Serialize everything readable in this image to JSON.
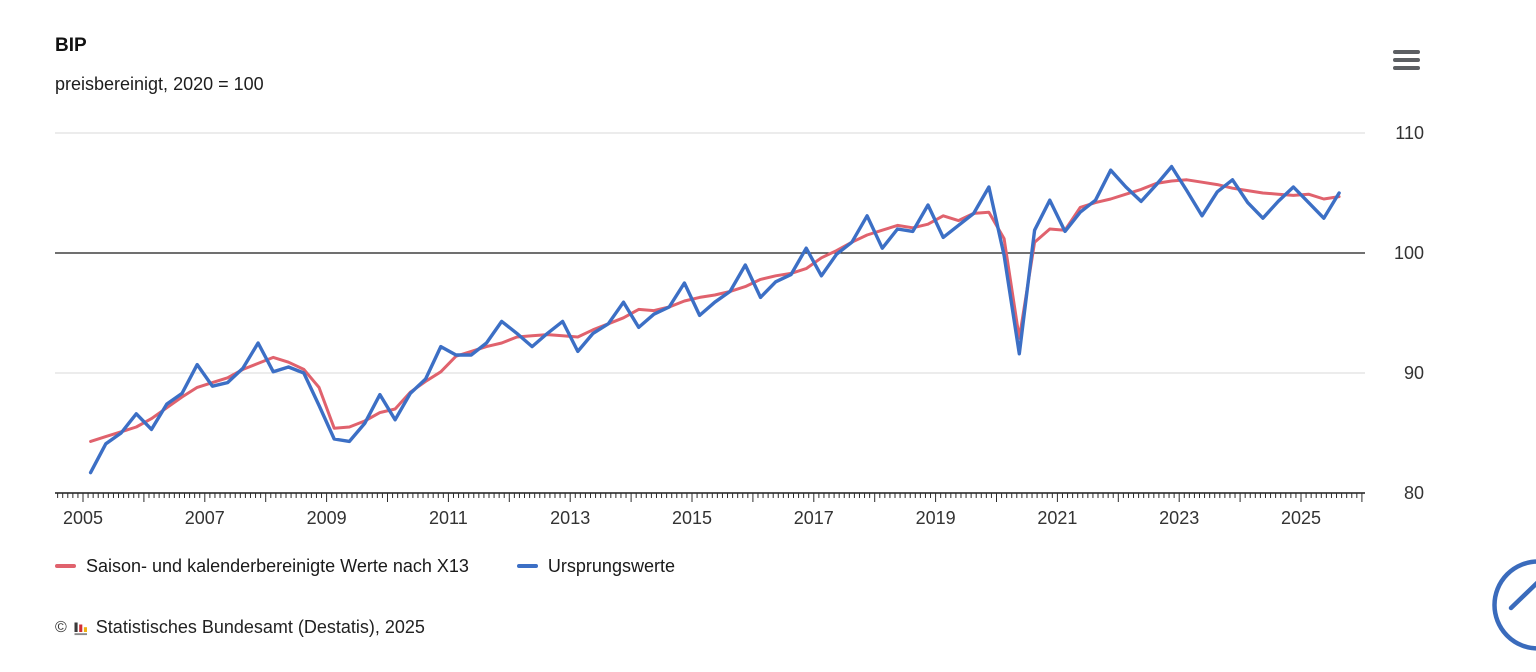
{
  "header": {
    "title": "BIP",
    "subtitle": "preisbereinigt, 2020 = 100"
  },
  "menu": {
    "aria_label": "Menü"
  },
  "chart_data": {
    "type": "line",
    "title": "BIP",
    "subtitle": "preisbereinigt, 2020 = 100",
    "frequency": "quarterly",
    "x_axis": {
      "start_year": 2005,
      "start_quarter": 1,
      "end_year": 2025,
      "end_quarter": 3,
      "tick_label_years": [
        2005,
        2007,
        2009,
        2011,
        2013,
        2015,
        2017,
        2019,
        2021,
        2023,
        2025
      ],
      "minor_ticks": "monthly",
      "range": [
        2004.54,
        2026.05
      ]
    },
    "y_axis": {
      "ticks": [
        80,
        90,
        100,
        110
      ],
      "range": [
        80,
        111.1
      ],
      "reference_line": 100,
      "labels_side": "right"
    },
    "series": [
      {
        "name": "Saison- und kalenderbereinigte Werte nach X13",
        "color": "#e0626d",
        "values": [
          84.3,
          84.7,
          85.1,
          85.5,
          86.2,
          87.1,
          88.0,
          88.8,
          89.2,
          89.6,
          90.3,
          90.8,
          91.3,
          90.9,
          90.3,
          88.8,
          85.4,
          85.5,
          86.0,
          86.7,
          87.0,
          88.4,
          89.3,
          90.1,
          91.4,
          91.8,
          92.2,
          92.5,
          93.0,
          93.1,
          93.2,
          93.1,
          93.0,
          93.6,
          94.1,
          94.6,
          95.3,
          95.2,
          95.5,
          96.0,
          96.3,
          96.5,
          96.8,
          97.2,
          97.8,
          98.1,
          98.3,
          98.7,
          99.6,
          100.2,
          100.9,
          101.5,
          101.9,
          102.3,
          102.1,
          102.4,
          103.1,
          102.7,
          103.3,
          103.4,
          101.2,
          92.9,
          100.9,
          102.0,
          101.9,
          103.8,
          104.2,
          104.5,
          104.9,
          105.3,
          105.8,
          106.0,
          106.1,
          105.9,
          105.7,
          105.4,
          105.2,
          105.0,
          104.9,
          104.8,
          104.9,
          104.5,
          104.7
        ]
      },
      {
        "name": "Ursprungswerte",
        "color": "#3c6fc5",
        "values": [
          81.7,
          84.1,
          85.0,
          86.6,
          85.3,
          87.4,
          88.3,
          90.7,
          88.9,
          89.2,
          90.4,
          92.5,
          90.1,
          90.5,
          90.0,
          87.3,
          84.5,
          84.3,
          85.8,
          88.2,
          86.1,
          88.3,
          89.5,
          92.2,
          91.5,
          91.5,
          92.5,
          94.3,
          93.3,
          92.2,
          93.3,
          94.3,
          91.8,
          93.3,
          94.1,
          95.9,
          93.8,
          94.9,
          95.5,
          97.5,
          94.8,
          95.9,
          96.8,
          99.0,
          96.3,
          97.6,
          98.2,
          100.4,
          98.1,
          99.9,
          100.9,
          103.1,
          100.4,
          102.0,
          101.8,
          104.0,
          101.3,
          102.3,
          103.3,
          105.5,
          99.8,
          91.6,
          101.9,
          104.4,
          101.8,
          103.4,
          104.4,
          106.9,
          105.5,
          104.3,
          105.7,
          107.2,
          105.2,
          103.1,
          105.1,
          106.1,
          104.2,
          102.9,
          104.3,
          105.5,
          104.2,
          102.9,
          105.0
        ]
      }
    ],
    "grid": "horizontal-only",
    "legend_position": "bottom-left"
  },
  "legend": {
    "items": [
      {
        "label": "Saison- und kalenderbereinigte Werte nach X13",
        "color": "#e0626d"
      },
      {
        "label": "Ursprungswerte",
        "color": "#3c6fc5"
      }
    ]
  },
  "footer": {
    "copyright": "©",
    "source": "Statistisches Bundesamt (Destatis), 2025"
  },
  "colors": {
    "adjusted_line": "#e0626d",
    "original_line": "#3c6fc5",
    "gridline": "#d8d8d8",
    "axis": "#1a1a1a",
    "text": "#333333",
    "menu_icon": "#5c5f63",
    "fab_blue": "#3a6bbc",
    "logo_black": "#3a3a3a",
    "logo_red": "#d22f35",
    "logo_gold": "#eeb111",
    "logo_base": "#8a8a8a"
  }
}
